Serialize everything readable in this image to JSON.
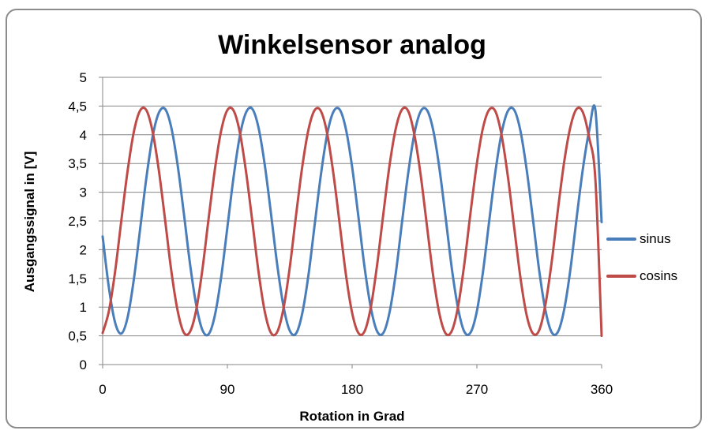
{
  "chart_data": {
    "type": "line",
    "title": "Winkelsensor analog",
    "xlabel": "Rotation in Grad",
    "ylabel": "Ausgangssignal in [V]",
    "xlim": [
      0,
      360
    ],
    "ylim": [
      0,
      5
    ],
    "xticks": [
      "0",
      "90",
      "180",
      "270",
      "360"
    ],
    "yticks": [
      "0",
      "0,5",
      "1",
      "1,5",
      "2",
      "2,5",
      "3",
      "3,5",
      "4",
      "4,5",
      "5"
    ],
    "grid": "horizontal",
    "legend_position": "right",
    "x": [
      0,
      4.5,
      9,
      13.5,
      18,
      22.5,
      27,
      31.5,
      36,
      40.5,
      45,
      49.5,
      54,
      58.5,
      63,
      67.5,
      72,
      76.5,
      81,
      85.5,
      90,
      94.5,
      99,
      103.5,
      108,
      112.5,
      117,
      121.5,
      126,
      130.5,
      135,
      139.5,
      144,
      148.5,
      153,
      157.5,
      162,
      166.5,
      171,
      175.5,
      180,
      184.5,
      189,
      193.5,
      198,
      202.5,
      207,
      211.5,
      216,
      220.5,
      225,
      229.5,
      234,
      238.5,
      243,
      247.5,
      252,
      256.5,
      261,
      265.5,
      270,
      274.5,
      279,
      283.5,
      288,
      292.5,
      297,
      301.5,
      306,
      310.5,
      315,
      319.5,
      324,
      328.5,
      333,
      337.5,
      342,
      346.5,
      351,
      355.5,
      360
    ],
    "series": [
      {
        "name": "sinus",
        "color": "#4a7ebb",
        "values": [
          2.23,
          1.34,
          0.73,
          0.54,
          0.82,
          1.48,
          2.35,
          3.24,
          3.96,
          4.38,
          4.45,
          4.13,
          3.49,
          2.65,
          1.76,
          1.04,
          0.6,
          0.53,
          0.86,
          1.52,
          2.39,
          3.27,
          3.98,
          4.39,
          4.45,
          4.12,
          3.47,
          2.62,
          1.73,
          1.01,
          0.59,
          0.54,
          0.89,
          1.56,
          2.44,
          3.31,
          4.01,
          4.4,
          4.44,
          4.1,
          3.44,
          2.58,
          1.69,
          0.99,
          0.58,
          0.55,
          0.91,
          1.59,
          2.48,
          3.34,
          4.03,
          4.41,
          4.43,
          4.08,
          3.41,
          2.55,
          1.66,
          0.97,
          0.57,
          0.56,
          0.93,
          1.63,
          2.52,
          3.38,
          4.05,
          4.42,
          4.43,
          4.06,
          3.38,
          2.52,
          1.63,
          0.94,
          0.56,
          0.57,
          0.96,
          1.66,
          2.56,
          3.41,
          4.07,
          4.43,
          2.48
        ]
      },
      {
        "name": "cosins",
        "color": "#be4b48",
        "values": [
          0.55,
          0.93,
          1.62,
          2.51,
          3.37,
          4.05,
          4.42,
          4.43,
          4.06,
          3.39,
          2.53,
          1.64,
          0.95,
          0.56,
          0.57,
          0.95,
          1.66,
          2.55,
          3.4,
          4.07,
          4.43,
          4.42,
          4.04,
          3.35,
          2.49,
          1.61,
          0.92,
          0.55,
          0.57,
          0.98,
          1.69,
          2.59,
          3.44,
          4.09,
          4.43,
          4.41,
          4.02,
          3.32,
          2.45,
          1.57,
          0.9,
          0.55,
          0.58,
          1.0,
          1.73,
          2.62,
          3.47,
          4.11,
          4.44,
          4.41,
          3.99,
          3.29,
          2.41,
          1.54,
          0.88,
          0.54,
          0.59,
          1.02,
          1.76,
          2.66,
          3.5,
          4.13,
          4.44,
          4.4,
          3.97,
          3.25,
          2.37,
          1.5,
          0.85,
          0.54,
          0.6,
          1.05,
          1.79,
          2.7,
          3.53,
          4.14,
          4.45,
          4.39,
          3.95,
          3.22,
          0.5
        ]
      }
    ]
  }
}
